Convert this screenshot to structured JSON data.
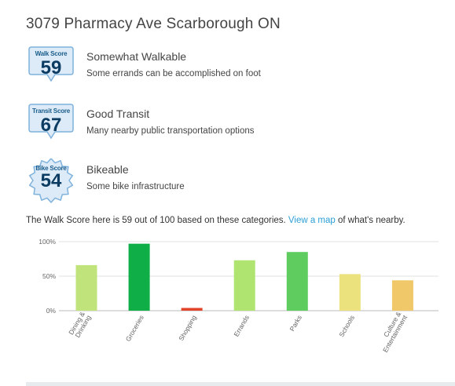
{
  "address": "3079 Pharmacy Ave Scarborough ON",
  "scores": [
    {
      "badge_label": "Walk Score",
      "value": "59",
      "title": "Somewhat Walkable",
      "description": "Some errands can be accomplished on foot",
      "shape": "pin"
    },
    {
      "badge_label": "Transit Score",
      "value": "67",
      "title": "Good Transit",
      "description": "Many nearby public transportation options",
      "shape": "pin"
    },
    {
      "badge_label": "Bike Score",
      "value": "54",
      "title": "Bikeable",
      "description": "Some bike infrastructure",
      "shape": "gear"
    }
  ],
  "summary": {
    "before": "The Walk Score here is 59 out of 100 based on these categories.",
    "link": "View a map",
    "after": "of what's nearby."
  },
  "badge_colors": {
    "fill": "#dcebf7",
    "stroke": "#7fb2dc",
    "number": "#0d3c63"
  },
  "chart_data": {
    "type": "bar",
    "categories": [
      "Dining & Drinking",
      "Groceries",
      "Shopping",
      "Errands",
      "Parks",
      "Schools",
      "Culture & Entertainment"
    ],
    "values": [
      66,
      97,
      4,
      73,
      85,
      53,
      44
    ],
    "colors": [
      "#c1e37c",
      "#0fae47",
      "#e1462d",
      "#aee46f",
      "#5fcc60",
      "#ece27d",
      "#f0c86a"
    ],
    "yticks": [
      "0%",
      "50%",
      "100%"
    ],
    "ylim": [
      0,
      100
    ],
    "grid": true
  }
}
